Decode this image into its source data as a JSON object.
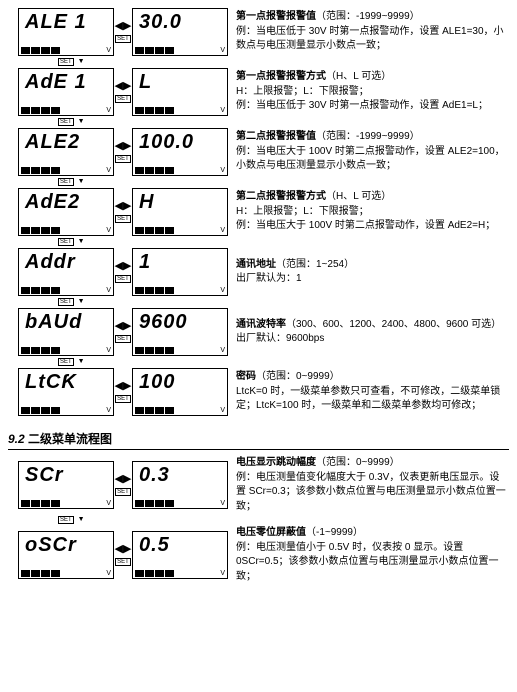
{
  "set_label": "SET",
  "indicator_v": "V",
  "arrow_bidir": "◀▶",
  "section1": {
    "rows": [
      {
        "left_display": "ALE 1",
        "right_display": "30.0",
        "title": "第一点报警报警值",
        "range": "（范围：-1999~9999）",
        "example": "例：当电压低于 30V 时第一点报警动作，设置 ALE1=30，小数点与电压测量显示小数点一致；"
      },
      {
        "left_display": "AdE 1",
        "right_display": "L",
        "title": "第一点报警报警方式",
        "range": "（H、L 可选）",
        "extra": "H：上限报警；L：下限报警；",
        "example": "例：当电压低于 30V 时第一点报警动作，设置 AdE1=L；"
      },
      {
        "left_display": "ALE2",
        "right_display": "100.0",
        "title": "第二点报警报警值",
        "range": "（范围：-1999~9999）",
        "example": "例：当电压大于 100V 时第二点报警动作，设置 ALE2=100，小数点与电压测量显示小数点一致；"
      },
      {
        "left_display": "AdE2",
        "right_display": "H",
        "title": "第二点报警报警方式",
        "range": "（H、L 可选）",
        "extra": "H：上限报警；L：下限报警；",
        "example": "例：当电压大于 100V 时第二点报警动作，设置 AdE2=H；"
      },
      {
        "left_display": "Addr",
        "right_display": "1",
        "title": "通讯地址",
        "range": "（范围：1~254）",
        "example": "出厂默认为：1"
      },
      {
        "left_display": "bAUd",
        "right_display": "9600",
        "title": "通讯波特率",
        "range": "（300、600、1200、2400、4800、9600 可选）",
        "example": "出厂默认：9600bps"
      },
      {
        "left_display": "LtCƘ",
        "right_display": "100",
        "title": "密码",
        "range": "（范围：0~9999）",
        "example": "LtcK=0 时，一级菜单参数只可查看，不可修改，二级菜单锁定；LtcK=100 时，一级菜单和二级菜单参数均可修改；"
      }
    ]
  },
  "section2": {
    "num": "9.2",
    "title": "二级菜单流程图",
    "rows": [
      {
        "left_display": "SCr",
        "right_display": "0.3",
        "title": "电压显示跳动幅度",
        "range": "（范围：0~9999）",
        "example": "例：电压测量值变化幅度大于 0.3V，仪表更新电压显示。设置 SCr=0.3；该参数小数点位置与电压测量显示小数点位置一致；"
      },
      {
        "left_display": "oSCr",
        "right_display": "0.5",
        "title": "电压零位屏蔽值",
        "range": "（-1~9999）",
        "example": "例：电压测量值小于 0.5V 时，仪表按 0 显示。设置 0SCr=0.5；该参数小数点位置与电压测量显示小数点位置一致；"
      }
    ]
  }
}
